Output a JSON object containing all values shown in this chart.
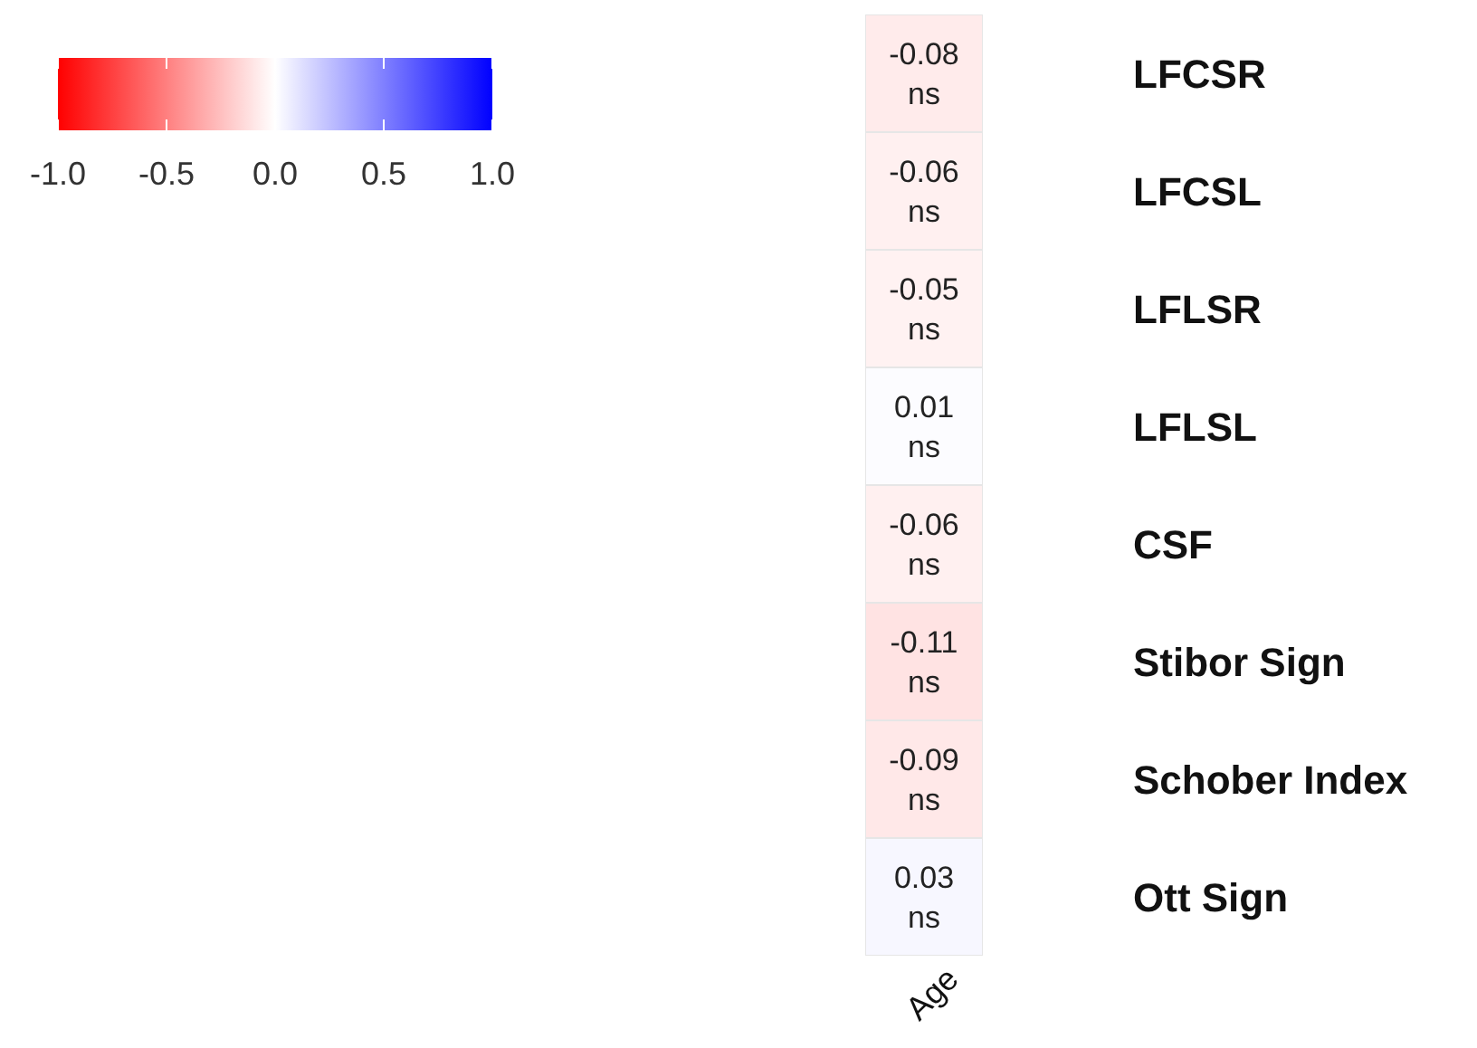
{
  "chart_data": {
    "type": "heatmap",
    "categories": [
      "Age"
    ],
    "y_categories": [
      "LFCSR",
      "LFCSL",
      "LFLSR",
      "LFLSL",
      "CSF",
      "Stibor Sign",
      "Schober Index",
      "Ott Sign"
    ],
    "cells": [
      [
        -0.08
      ],
      [
        -0.06
      ],
      [
        -0.05
      ],
      [
        0.01
      ],
      [
        -0.06
      ],
      [
        -0.11
      ],
      [
        -0.09
      ],
      [
        0.03
      ]
    ],
    "cell_labels": [
      [
        "-0.08\nns"
      ],
      [
        "-0.06\nns"
      ],
      [
        "-0.05\nns"
      ],
      [
        "0.01\nns"
      ],
      [
        "-0.06\nns"
      ],
      [
        "-0.11\nns"
      ],
      [
        "-0.09\nns"
      ],
      [
        "0.03\nns"
      ]
    ],
    "clim": [
      -1,
      1
    ],
    "cticks": [
      {
        "value": -1,
        "label": "-1.0"
      },
      {
        "value": -0.5,
        "label": "-0.5"
      },
      {
        "value": 0,
        "label": "0.0"
      },
      {
        "value": 0.5,
        "label": "0.5"
      },
      {
        "value": 1,
        "label": "1.0"
      }
    ]
  }
}
